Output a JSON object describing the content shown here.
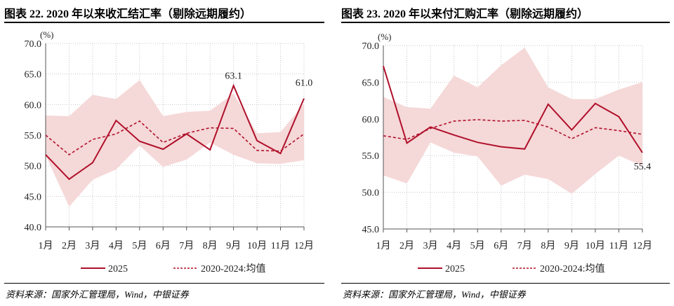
{
  "colors": {
    "line": "#B0102A",
    "band": "#F5D8D8",
    "grid": "#C8C8C8"
  },
  "charts": [
    {
      "title": "图表 22. 2020 年以来收汇结汇率（剔除远期履约）",
      "source": "资料来源：国家外汇管理局，Wind，中银证券"
    },
    {
      "title": "图表 23. 2020 年以来付汇购汇率（剔除远期履约）",
      "source": "资料来源：国家外汇管理局，Wind，中银证券"
    }
  ],
  "chart_data": [
    {
      "type": "line",
      "title": "图表 22. 2020 年以来收汇结汇率（剔除远期履约）",
      "ylabel": "(%)",
      "ylim": [
        40,
        70
      ],
      "yticks": [
        "40.0",
        "45.0",
        "50.0",
        "55.0",
        "60.0",
        "65.0",
        "70.0"
      ],
      "grid": true,
      "legend_position": "bottom",
      "categories": [
        "1月",
        "2月",
        "3月",
        "4月",
        "5月",
        "6月",
        "7月",
        "8月",
        "9月",
        "10月",
        "11月",
        "12月"
      ],
      "band": {
        "max": [
          58.2,
          58.1,
          61.6,
          60.9,
          64.0,
          58.1,
          58.8,
          59.0,
          61.8,
          55.3,
          55.5,
          60.1
        ],
        "min": [
          51.7,
          43.3,
          47.7,
          49.4,
          53.3,
          49.8,
          51.0,
          53.8,
          51.8,
          50.4,
          50.3,
          50.9
        ]
      },
      "series": [
        {
          "name": "2025",
          "style": "solid",
          "values": [
            51.8,
            47.8,
            50.5,
            57.4,
            54.0,
            52.7,
            55.2,
            52.6,
            63.1,
            54.1,
            52.0,
            61.0
          ]
        },
        {
          "name": "2020-2024:均值",
          "style": "dashed",
          "values": [
            55.0,
            51.8,
            54.3,
            55.2,
            57.3,
            53.8,
            55.3,
            56.2,
            56.1,
            52.5,
            52.4,
            55.2
          ]
        }
      ],
      "annotations": [
        {
          "month": "9月",
          "text": "63.1"
        },
        {
          "month": "12月",
          "text": "61.0"
        }
      ]
    },
    {
      "type": "line",
      "title": "图表 23. 2020 年以来付汇购汇率（剔除远期履约）",
      "ylabel": "(%)",
      "ylim": [
        45,
        70
      ],
      "yticks": [
        "45.0",
        "50.0",
        "55.0",
        "60.0",
        "65.0",
        "70.0"
      ],
      "grid": true,
      "legend_position": "bottom",
      "categories": [
        "1月",
        "2月",
        "3月",
        "4月",
        "5月",
        "6月",
        "7月",
        "8月",
        "9月",
        "10月",
        "11月",
        "12月"
      ],
      "band": {
        "max": [
          63.0,
          61.6,
          61.4,
          65.9,
          64.3,
          67.3,
          69.7,
          64.3,
          62.7,
          62.7,
          64.0,
          65.0
        ],
        "min": [
          52.3,
          51.2,
          56.8,
          55.4,
          54.9,
          50.9,
          52.4,
          51.8,
          49.8,
          52.5,
          55.0,
          53.6
        ]
      },
      "series": [
        {
          "name": "2025",
          "style": "solid",
          "values": [
            67.2,
            56.7,
            58.9,
            57.8,
            56.8,
            56.2,
            55.9,
            62.0,
            58.5,
            62.1,
            60.3,
            55.4
          ]
        },
        {
          "name": "2020-2024:均值",
          "style": "dashed",
          "values": [
            57.7,
            57.2,
            58.7,
            59.7,
            59.9,
            59.7,
            59.8,
            58.9,
            57.3,
            58.8,
            58.4,
            57.9
          ]
        }
      ],
      "annotations": [
        {
          "month": "12月",
          "text": "55.4"
        }
      ]
    }
  ]
}
